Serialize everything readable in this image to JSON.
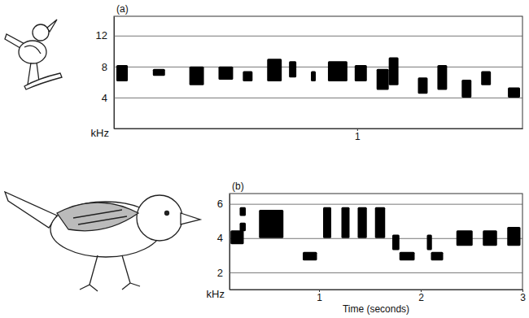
{
  "chart_data": [
    {
      "type": "spectrogram",
      "title": "(a)",
      "y_label": "kHz",
      "xlim": [
        0,
        1.68
      ],
      "xticks": [
        1
      ],
      "ylim": [
        0,
        14.5
      ],
      "yticks": [
        4,
        8,
        12
      ],
      "grid": true,
      "color": "#000000",
      "x_start": [
        0.01,
        0.16,
        0.31,
        0.43,
        0.53,
        0.63,
        0.72,
        0.81,
        0.88,
        0.99,
        1.08,
        1.13,
        1.25,
        1.33,
        1.43,
        1.51,
        1.62
      ],
      "x_end": [
        0.057,
        0.21,
        0.37,
        0.49,
        0.57,
        0.69,
        0.75,
        0.83,
        0.96,
        1.04,
        1.13,
        1.17,
        1.29,
        1.37,
        1.47,
        1.55,
        1.67
      ],
      "y_low": [
        6.1,
        6.8,
        5.6,
        6.3,
        6.1,
        6.1,
        6.6,
        6.1,
        6.1,
        6.1,
        5.0,
        5.6,
        4.5,
        5.0,
        4.0,
        5.6,
        4.0
      ],
      "y_high": [
        8.2,
        7.7,
        8.0,
        8.0,
        7.4,
        9.0,
        8.7,
        7.4,
        8.7,
        8.2,
        7.7,
        9.2,
        6.6,
        8.2,
        6.3,
        7.4,
        5.3
      ]
    },
    {
      "type": "spectrogram",
      "title": "(b)",
      "y_label": "kHz",
      "x_label": "Time (seconds)",
      "xlim": [
        0.12,
        3.0
      ],
      "xticks": [
        1,
        2,
        3
      ],
      "ylim": [
        1,
        6.6
      ],
      "yticks": [
        2,
        4,
        6
      ],
      "grid": true,
      "color": "#000000",
      "x_start": [
        0.13,
        0.22,
        0.22,
        0.41,
        0.84,
        1.04,
        1.22,
        1.38,
        1.55,
        1.72,
        1.79,
        2.06,
        2.1,
        2.35,
        2.61,
        2.85
      ],
      "x_end": [
        0.26,
        0.28,
        0.28,
        0.65,
        0.98,
        1.12,
        1.3,
        1.47,
        1.65,
        1.79,
        1.94,
        2.11,
        2.22,
        2.51,
        2.75,
        2.98
      ],
      "y_low": [
        3.65,
        5.3,
        4.4,
        4.0,
        2.7,
        4.0,
        4.0,
        4.0,
        4.0,
        3.3,
        2.7,
        3.3,
        2.7,
        3.55,
        3.55,
        3.55
      ],
      "y_high": [
        4.45,
        5.8,
        4.9,
        5.65,
        3.2,
        5.8,
        5.8,
        5.8,
        5.8,
        4.2,
        3.2,
        4.2,
        3.2,
        4.45,
        4.45,
        4.65
      ]
    }
  ]
}
